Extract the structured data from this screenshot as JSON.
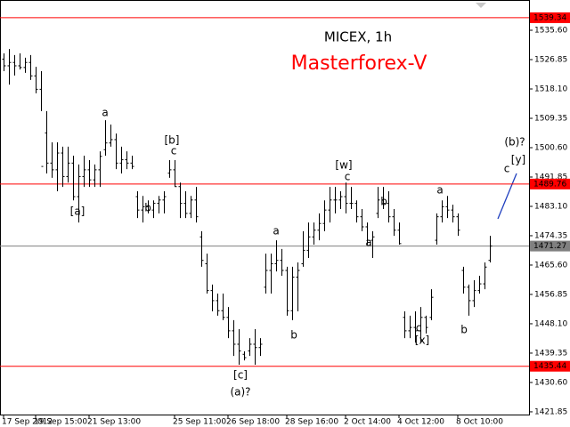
{
  "chart_data": {
    "type": "ohlc",
    "title": "MICEX, 1h",
    "subtitle": "Masterforex-V",
    "ylim": [
      1421.04,
      1544.62
    ],
    "yticks": [
      {
        "value": 1535.6,
        "label": "1535.60"
      },
      1526.85,
      {
        "value": 1518.1,
        "label": "1518.10"
      },
      1509.35,
      {
        "value": 1500.6,
        "label": "1500.60"
      },
      1491.85,
      {
        "value": 1483.1,
        "label": "1483.10"
      },
      1474.35,
      {
        "value": 1465.6,
        "label": "1465.60"
      },
      1456.85,
      {
        "value": 1448.1,
        "label": "1448.10"
      },
      1439.35,
      {
        "value": 1430.6,
        "label": "1430.60"
      },
      1421.85
    ],
    "xticks": [
      {
        "value": 0,
        "label": "17 Sep 2012"
      },
      {
        "value": 6,
        "label": "19 Sep 15:00"
      },
      {
        "value": 16,
        "label": "21 Sep 13:00"
      },
      {
        "value": 32,
        "label": "25 Sep 11:00"
      },
      {
        "value": 42,
        "label": "26 Sep 18:00"
      },
      {
        "value": 53,
        "label": "28 Sep 16:00"
      },
      {
        "value": 64,
        "label": "2 Oct 14:00"
      },
      {
        "value": 74,
        "label": "4 Oct 12:00"
      },
      {
        "value": 85,
        "label": "8 Oct 10:00"
      }
    ],
    "grid": false,
    "color": "#000000",
    "ohlc": {
      "open": [
        1527,
        1525,
        1526,
        1525,
        1524.5,
        1526,
        1522,
        1518,
        1505,
        1496,
        1494,
        1499,
        1492,
        1496,
        1486,
        1492,
        1494,
        1491,
        1494,
        1500,
        1502,
        1503,
        1496,
        1497,
        1496,
        1486,
        1482,
        1483,
        1482,
        1484,
        1485,
        1493,
        1494,
        1489,
        1484,
        1481,
        1485,
        1474,
        1466,
        1458,
        1455,
        1452,
        1450,
        1446,
        1442,
        1439,
        1440,
        1442,
        1441,
        1459,
        1464,
        1466,
        1467,
        1464,
        1452,
        1462,
        1466,
        1470,
        1474,
        1476,
        1478,
        1482,
        1485,
        1485,
        1486,
        1484,
        1484,
        1480,
        1477,
        1473,
        1481,
        1485,
        1484,
        1480,
        1476,
        1450,
        1446,
        1447,
        1446,
        1450,
        1450,
        1473,
        1480,
        1483,
        1482,
        1480,
        1464,
        1459,
        1455,
        1458,
        1460,
        1467
      ],
      "high": [
        1528.7,
        1530.0,
        1528.2,
        1528.7,
        1527.4,
        1528.2,
        1524.7,
        1523.4,
        1511.5,
        1502.2,
        1502.2,
        1500.9,
        1500.9,
        1498.2,
        1495.6,
        1498.2,
        1496.9,
        1495.6,
        1499.5,
        1508.8,
        1507.5,
        1504.8,
        1500.9,
        1499.5,
        1498.2,
        1487.6,
        1486.2,
        1484.9,
        1484.9,
        1486.2,
        1487.6,
        1496.9,
        1496.9,
        1490.2,
        1487.6,
        1486.2,
        1488.9,
        1475.7,
        1469.0,
        1459.8,
        1457.1,
        1457.1,
        1453.1,
        1449.2,
        1446.5,
        1439.9,
        1443.8,
        1446.5,
        1443.8,
        1469.0,
        1469.0,
        1473.0,
        1470.4,
        1465.1,
        1465.1,
        1466.4,
        1475.7,
        1478.3,
        1478.3,
        1481.0,
        1484.9,
        1488.9,
        1488.9,
        1487.6,
        1490.2,
        1488.9,
        1484.9,
        1482.3,
        1478.3,
        1475.7,
        1488.9,
        1488.9,
        1487.6,
        1482.3,
        1478.3,
        1451.8,
        1450.5,
        1451.8,
        1453.1,
        1450.5,
        1458.4,
        1481.0,
        1484.9,
        1486.2,
        1483.6,
        1481.0,
        1465.1,
        1459.8,
        1461.1,
        1462.4,
        1466.4,
        1474.3
      ],
      "low": [
        1523.4,
        1519.4,
        1522.1,
        1523.9,
        1522.9,
        1520.8,
        1516.8,
        1511.5,
        1492.9,
        1491.6,
        1487.6,
        1488.9,
        1490.2,
        1484.9,
        1478.3,
        1488.9,
        1488.9,
        1488.9,
        1488.9,
        1498.2,
        1500.9,
        1494.2,
        1492.9,
        1494.2,
        1494.2,
        1479.6,
        1478.3,
        1481.0,
        1479.6,
        1481.0,
        1481.0,
        1491.6,
        1488.9,
        1479.6,
        1479.6,
        1479.6,
        1478.3,
        1465.1,
        1457.1,
        1451.8,
        1450.5,
        1449.2,
        1443.8,
        1438.5,
        1435.9,
        1437.2,
        1438.5,
        1435.9,
        1438.5,
        1457.1,
        1457.1,
        1463.7,
        1462.4,
        1450.5,
        1449.2,
        1451.8,
        1465.1,
        1467.7,
        1471.7,
        1473.0,
        1475.7,
        1478.3,
        1481.0,
        1482.3,
        1481.0,
        1482.3,
        1478.3,
        1475.7,
        1471.7,
        1467.7,
        1479.6,
        1482.3,
        1478.3,
        1474.3,
        1471.7,
        1443.8,
        1443.8,
        1442.5,
        1442.5,
        1445.2,
        1449.2,
        1471.7,
        1478.3,
        1479.6,
        1478.3,
        1474.3,
        1457.1,
        1450.5,
        1453.1,
        1457.1,
        1458.4,
        1466.4
      ],
      "close": [
        1525,
        1526,
        1525,
        1524.5,
        1526,
        1522,
        1518,
        1495,
        1496,
        1494,
        1499,
        1492,
        1496,
        1486,
        1492,
        1494,
        1491,
        1494,
        1498,
        1502,
        1503,
        1496,
        1497,
        1496,
        1495,
        1482,
        1483,
        1482,
        1484,
        1485,
        1486,
        1494,
        1489,
        1484,
        1481,
        1485,
        1480,
        1467,
        1458,
        1455,
        1452,
        1450,
        1446,
        1442,
        1440,
        1438,
        1442,
        1441,
        1442,
        1464,
        1466,
        1467,
        1464,
        1452,
        1462,
        1464,
        1470,
        1474,
        1476,
        1478,
        1482,
        1485,
        1485,
        1486,
        1484,
        1484,
        1480,
        1477,
        1473,
        1474,
        1485,
        1484,
        1480,
        1476,
        1472,
        1446,
        1447,
        1446,
        1450,
        1447,
        1456,
        1480,
        1483,
        1482,
        1480,
        1476,
        1459,
        1455,
        1458,
        1460,
        1465,
        1471.27
      ]
    },
    "levels": [
      {
        "value": 1539.34,
        "color": "#ff0000"
      },
      {
        "value": 1489.76,
        "color": "#ff0000"
      },
      {
        "value": 1471.27,
        "color": "#808080"
      },
      {
        "value": 1435.44,
        "color": "#ff0000"
      }
    ],
    "annotations": [
      "a",
      "[b]",
      "c",
      "[a]",
      "b",
      "[c]",
      "(a)?",
      "a",
      "b",
      "[w]",
      "c",
      "b",
      "a",
      "a",
      "c",
      "[x]",
      "b",
      "(b)?",
      "[y]",
      "c"
    ]
  }
}
